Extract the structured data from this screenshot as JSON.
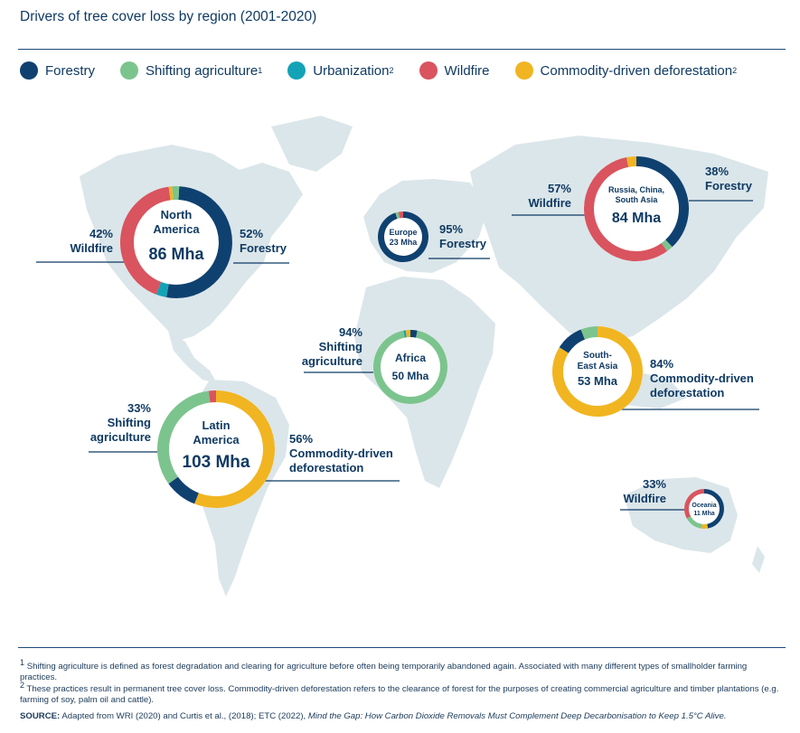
{
  "header": {
    "title": "Drivers of tree cover loss by region (2001-2020)"
  },
  "legend": [
    {
      "label": "Forestry",
      "sup": "",
      "color": "#0f4170"
    },
    {
      "label": "Shifting agriculture",
      "sup": "1",
      "color": "#7cc48e"
    },
    {
      "label": "Urbanization",
      "sup": "2",
      "color": "#14a3b6"
    },
    {
      "label": "Wildfire",
      "sup": "",
      "color": "#d9545f"
    },
    {
      "label": "Commodity-driven deforestation",
      "sup": "2",
      "color": "#f1b521"
    }
  ],
  "chart_data": {
    "type": "pie",
    "title": "Drivers of tree cover loss by region (2001-2020)",
    "series_order": [
      "Forestry",
      "Shifting agriculture",
      "Urbanization",
      "Wildfire",
      "Commodity-driven deforestation"
    ],
    "regions": [
      {
        "name_lines": [
          "North",
          "America"
        ],
        "total": "86 Mha",
        "segments": [
          {
            "driver": "Forestry",
            "value": 52
          },
          {
            "driver": "Urbanization",
            "value": 3
          },
          {
            "driver": "Wildfire",
            "value": 42
          },
          {
            "driver": "Commodity-driven deforestation",
            "value": 1
          },
          {
            "driver": "Shifting agriculture",
            "value": 2
          }
        ],
        "callouts": [
          {
            "pct": "42%",
            "lines": [
              "Wildfire"
            ]
          },
          {
            "pct": "52%",
            "lines": [
              "Forestry"
            ]
          }
        ]
      },
      {
        "name_lines": [
          "Europe"
        ],
        "total": "23 Mha",
        "segments": [
          {
            "driver": "Forestry",
            "value": 95
          },
          {
            "driver": "Shifting agriculture",
            "value": 2
          },
          {
            "driver": "Wildfire",
            "value": 3
          }
        ],
        "callouts": [
          {
            "pct": "95%",
            "lines": [
              "Forestry"
            ]
          }
        ]
      },
      {
        "name_lines": [
          "Russia, China,",
          "South Asia"
        ],
        "total": "84 Mha",
        "segments": [
          {
            "driver": "Forestry",
            "value": 38
          },
          {
            "driver": "Shifting agriculture",
            "value": 2
          },
          {
            "driver": "Wildfire",
            "value": 57
          },
          {
            "driver": "Commodity-driven deforestation",
            "value": 3
          }
        ],
        "callouts": [
          {
            "pct": "57%",
            "lines": [
              "Wildfire"
            ]
          },
          {
            "pct": "38%",
            "lines": [
              "Forestry"
            ]
          }
        ]
      },
      {
        "name_lines": [
          "Africa"
        ],
        "total": "50 Mha",
        "segments": [
          {
            "driver": "Forestry",
            "value": 3
          },
          {
            "driver": "Shifting agriculture",
            "value": 94
          },
          {
            "driver": "Urbanization",
            "value": 1
          },
          {
            "driver": "Commodity-driven deforestation",
            "value": 2
          }
        ],
        "callouts": [
          {
            "pct": "94%",
            "lines": [
              "Shifting",
              "agriculture"
            ]
          }
        ]
      },
      {
        "name_lines": [
          "South-",
          "East Asia"
        ],
        "total": "53 Mha",
        "segments": [
          {
            "driver": "Commodity-driven deforestation",
            "value": 84
          },
          {
            "driver": "Forestry",
            "value": 10
          },
          {
            "driver": "Shifting agriculture",
            "value": 6
          }
        ],
        "callouts": [
          {
            "pct": "84%",
            "lines": [
              "Commodity-driven",
              "deforestation"
            ]
          }
        ]
      },
      {
        "name_lines": [
          "Latin",
          "America"
        ],
        "total": "103 Mha",
        "segments": [
          {
            "driver": "Commodity-driven deforestation",
            "value": 56
          },
          {
            "driver": "Forestry",
            "value": 9
          },
          {
            "driver": "Shifting agriculture",
            "value": 33
          },
          {
            "driver": "Wildfire",
            "value": 2
          }
        ],
        "callouts": [
          {
            "pct": "33%",
            "lines": [
              "Shifting",
              "agriculture"
            ]
          },
          {
            "pct": "56%",
            "lines": [
              "Commodity-driven",
              "deforestation"
            ]
          }
        ]
      },
      {
        "name_lines": [
          "Oceania"
        ],
        "total": "11 Mha",
        "segments": [
          {
            "driver": "Forestry",
            "value": 47
          },
          {
            "driver": "Commodity-driven deforestation",
            "value": 5
          },
          {
            "driver": "Shifting agriculture",
            "value": 15
          },
          {
            "driver": "Wildfire",
            "value": 33
          }
        ],
        "callouts": [
          {
            "pct": "33%",
            "lines": [
              "Wildfire"
            ]
          }
        ]
      }
    ]
  },
  "footnotes": {
    "note1_mark": "1",
    "note1": "Shifting agriculture is defined as forest degradation and clearing for agriculture before often being temporarily abandoned again. Associated with many different types of smallholder farming practices.",
    "note2_mark": "2",
    "note2": "These practices result in permanent tree cover loss. Commodity-driven deforestation refers to the clearance of forest for the purposes of creating commercial agriculture and timber plantations (e.g. farming of soy, palm oil and cattle).",
    "source_label": "SOURCE:",
    "source_text": "Adapted from WRI (2020) and Curtis et al., (2018); ETC (2022),",
    "source_title": "Mind the Gap: How Carbon Dioxide Removals Must Complement Deep Decarbonisation to Keep 1.5°C Alive."
  }
}
